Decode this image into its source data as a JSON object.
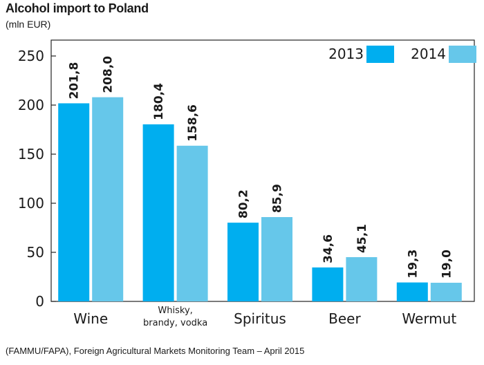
{
  "chart_data": {
    "type": "bar",
    "title": "Alcohol import to Poland",
    "subtitle": "(mln EUR)",
    "categories": [
      [
        "Wine"
      ],
      [
        "Whisky,",
        "brandy, vodka"
      ],
      [
        "Spiritus"
      ],
      [
        "Beer"
      ],
      [
        "Wermut"
      ]
    ],
    "series": [
      {
        "name": "2013",
        "color": "#00aeef",
        "values": [
          201.8,
          180.4,
          80.2,
          34.6,
          19.3
        ],
        "labels": [
          "201,8",
          "180,4",
          "80,2",
          "34,6",
          "19,3"
        ]
      },
      {
        "name": "2014",
        "color": "#66c7ea",
        "values": [
          208.0,
          158.6,
          85.9,
          45.1,
          19.0
        ],
        "labels": [
          "208,0",
          "158,6",
          "85,9",
          "45,1",
          "19,0"
        ]
      }
    ],
    "yticks": [
      0,
      50,
      100,
      150,
      200,
      250
    ],
    "ylim": [
      0,
      250
    ],
    "legend": "top-right",
    "grid": false
  },
  "source": "(FAMMU/FAPA), Foreign Agricultural Markets Monitoring Team – April 2015"
}
